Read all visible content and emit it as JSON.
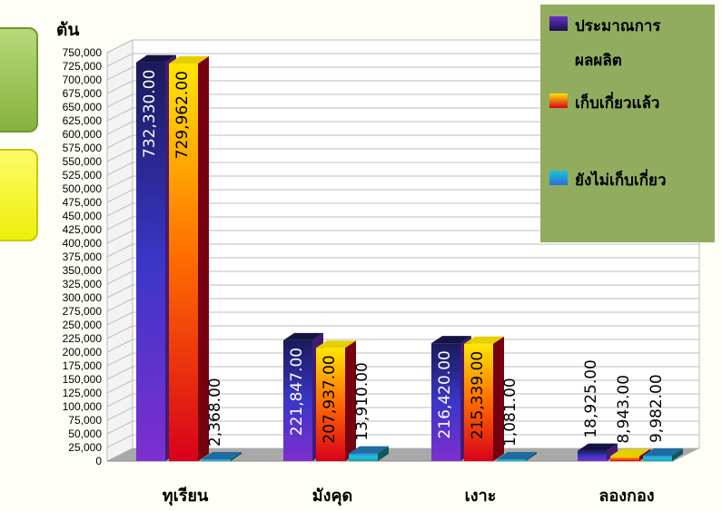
{
  "chart_data": {
    "type": "bar",
    "unit_label": "ตัน",
    "categories": [
      "ทุเรียน",
      "มังคุด",
      "เงาะ",
      "ลองกอง"
    ],
    "series": [
      {
        "name": "ประมาณการผลผลิต",
        "values": [
          732330,
          221847,
          216420,
          18925
        ],
        "labels": [
          "732,330.00",
          "221,847.00",
          "216,420.00",
          "18,925.00"
        ],
        "colors": [
          "#1a1a5a",
          "#3a36c8",
          "#7e2fd0"
        ]
      },
      {
        "name": "เก็บเกี่ยวแล้ว",
        "values": [
          729962,
          207937,
          215339,
          8943
        ],
        "labels": [
          "729,962.00",
          "207,937.00",
          "215,339.00",
          "8,943.00"
        ],
        "colors": [
          "#ffe600",
          "#ff6a00",
          "#d8001a"
        ]
      },
      {
        "name": "ยังไม่เก็บเกี่ยว",
        "values": [
          2368,
          13910,
          1081,
          9982
        ],
        "labels": [
          "2,368.00",
          "13,910.00",
          "1,081.00",
          "9,982.00"
        ],
        "colors": [
          "#2a8fd8",
          "#1ec2d8",
          "#16a0a8"
        ]
      }
    ],
    "ylim": [
      0,
      750000
    ],
    "ytick_step": 25000,
    "yticks": [
      "0",
      "25,000",
      "50,000",
      "75,000",
      "100,000",
      "125,000",
      "150,000",
      "175,000",
      "200,000",
      "225,000",
      "250,000",
      "275,000",
      "300,000",
      "325,000",
      "350,000",
      "375,000",
      "400,000",
      "425,000",
      "450,000",
      "475,000",
      "500,000",
      "525,000",
      "550,000",
      "575,000",
      "600,000",
      "625,000",
      "650,000",
      "675,000",
      "700,000",
      "725,000",
      "750,000"
    ],
    "grid": true,
    "legend_position": "top-right",
    "legend_background": "#92ac5f"
  },
  "legend": {
    "items": [
      {
        "lines": [
          "ประมาณการ",
          "ผลผลิต"
        ]
      },
      {
        "lines": [
          "เก็บเกี่ยวแล้ว"
        ]
      },
      {
        "lines": [
          "ยังไม่เก็บเกี่ยว"
        ]
      }
    ]
  }
}
